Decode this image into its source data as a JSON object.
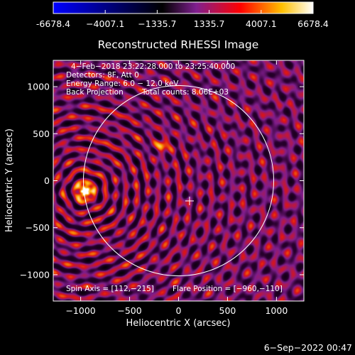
{
  "colorbar": {
    "ticks": [
      -6678.4,
      -4007.1,
      -1335.7,
      1335.7,
      4007.1,
      6678.4
    ],
    "tick_labels": [
      "-6678.4",
      "−4007.1",
      "−1335.7",
      "1335.7",
      "4007.1",
      "6678.4"
    ],
    "colors": [
      "#0000ff",
      "#000000",
      "#7f1f8f",
      "#ff0000",
      "#ffc000",
      "#ffffff"
    ]
  },
  "annotations": {
    "time_range": "4−Feb−2018 23:22:28.000 to 23:25:40.000",
    "detectors": "Detectors: 8F, Att 0",
    "energy": "Energy Range: 6.0 − 12.0 keV",
    "method": "Back Projection",
    "total_counts": "Total counts: 8.06E+03",
    "spin_axis": "Spin Axis = [112,−215]",
    "flare_position": "Flare Position = [−960,−110]"
  },
  "footer_date": "6−Sep−2022 00:47",
  "chart_data": {
    "type": "heatmap",
    "title": "Reconstructed RHESSI Image",
    "xlabel": "Heliocentric X (arcsec)",
    "ylabel": "Heliocentric Y (arcsec)",
    "xlim": [
      -1280,
      1280
    ],
    "ylim": [
      -1280,
      1280
    ],
    "x_ticks": [
      -1000,
      -500,
      0,
      500,
      1000
    ],
    "x_tick_labels": [
      "−1000",
      "−500",
      "0",
      "500",
      "1000"
    ],
    "y_ticks": [
      -1000,
      -500,
      0,
      500,
      1000
    ],
    "y_tick_labels": [
      "−1000",
      "−500",
      "0",
      "500",
      "1000"
    ],
    "colorbar_range": [
      -6678.4,
      6678.4
    ],
    "solar_disk_radius": 972,
    "sun_center_marker": [
      112,
      -215
    ],
    "bright_sources": [
      {
        "x": -960,
        "y": -110,
        "level": "max"
      },
      {
        "x": -170,
        "y": 370,
        "level": "high"
      }
    ]
  }
}
